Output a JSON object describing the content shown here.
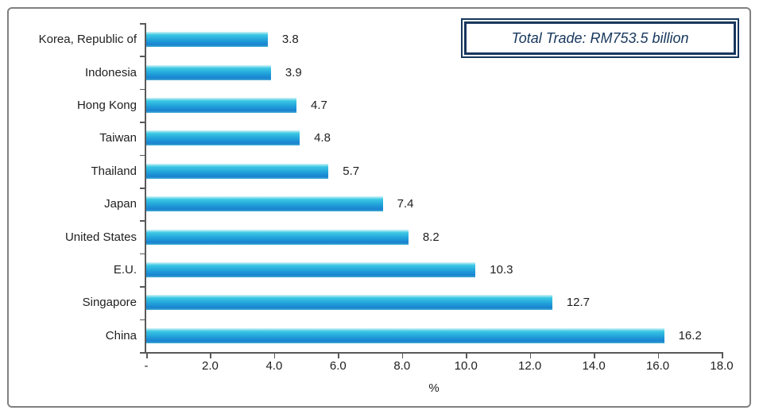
{
  "chart_data": {
    "type": "bar",
    "orientation": "horizontal",
    "categories": [
      "Korea, Republic of",
      "Indonesia",
      "Hong Kong",
      "Taiwan",
      "Thailand",
      "Japan",
      "United States",
      "E.U.",
      "Singapore",
      "China"
    ],
    "values": [
      3.8,
      3.9,
      4.7,
      4.8,
      5.7,
      7.4,
      8.2,
      10.3,
      12.7,
      16.2
    ],
    "value_labels": [
      "3.8",
      "3.9",
      "4.7",
      "4.8",
      "5.7",
      "7.4",
      "8.2",
      "10.3",
      "12.7",
      "16.2"
    ],
    "annotation": "Total Trade: RM753.5 billion",
    "xlabel": "%",
    "xlim": [
      0,
      18
    ],
    "x_ticks": [
      {
        "value": 0,
        "label": "-"
      },
      {
        "value": 2,
        "label": "2.0"
      },
      {
        "value": 4,
        "label": "4.0"
      },
      {
        "value": 6,
        "label": "6.0"
      },
      {
        "value": 8,
        "label": "8.0"
      },
      {
        "value": 10,
        "label": "10.0"
      },
      {
        "value": 12,
        "label": "12.0"
      },
      {
        "value": 14,
        "label": "14.0"
      },
      {
        "value": 16,
        "label": "16.0"
      },
      {
        "value": 18,
        "label": "18.0"
      }
    ],
    "grid": false,
    "legend": false
  },
  "colors": {
    "background": "#ffffff",
    "frame_border": "#808080",
    "axis": "#595959",
    "text": "#1f1f1f",
    "annotation_navy": "#17375d",
    "bar_gradient": [
      "#d8f5f8",
      "#3cc8e4",
      "#21a2da",
      "#1a82d0",
      "#43afd2"
    ]
  }
}
